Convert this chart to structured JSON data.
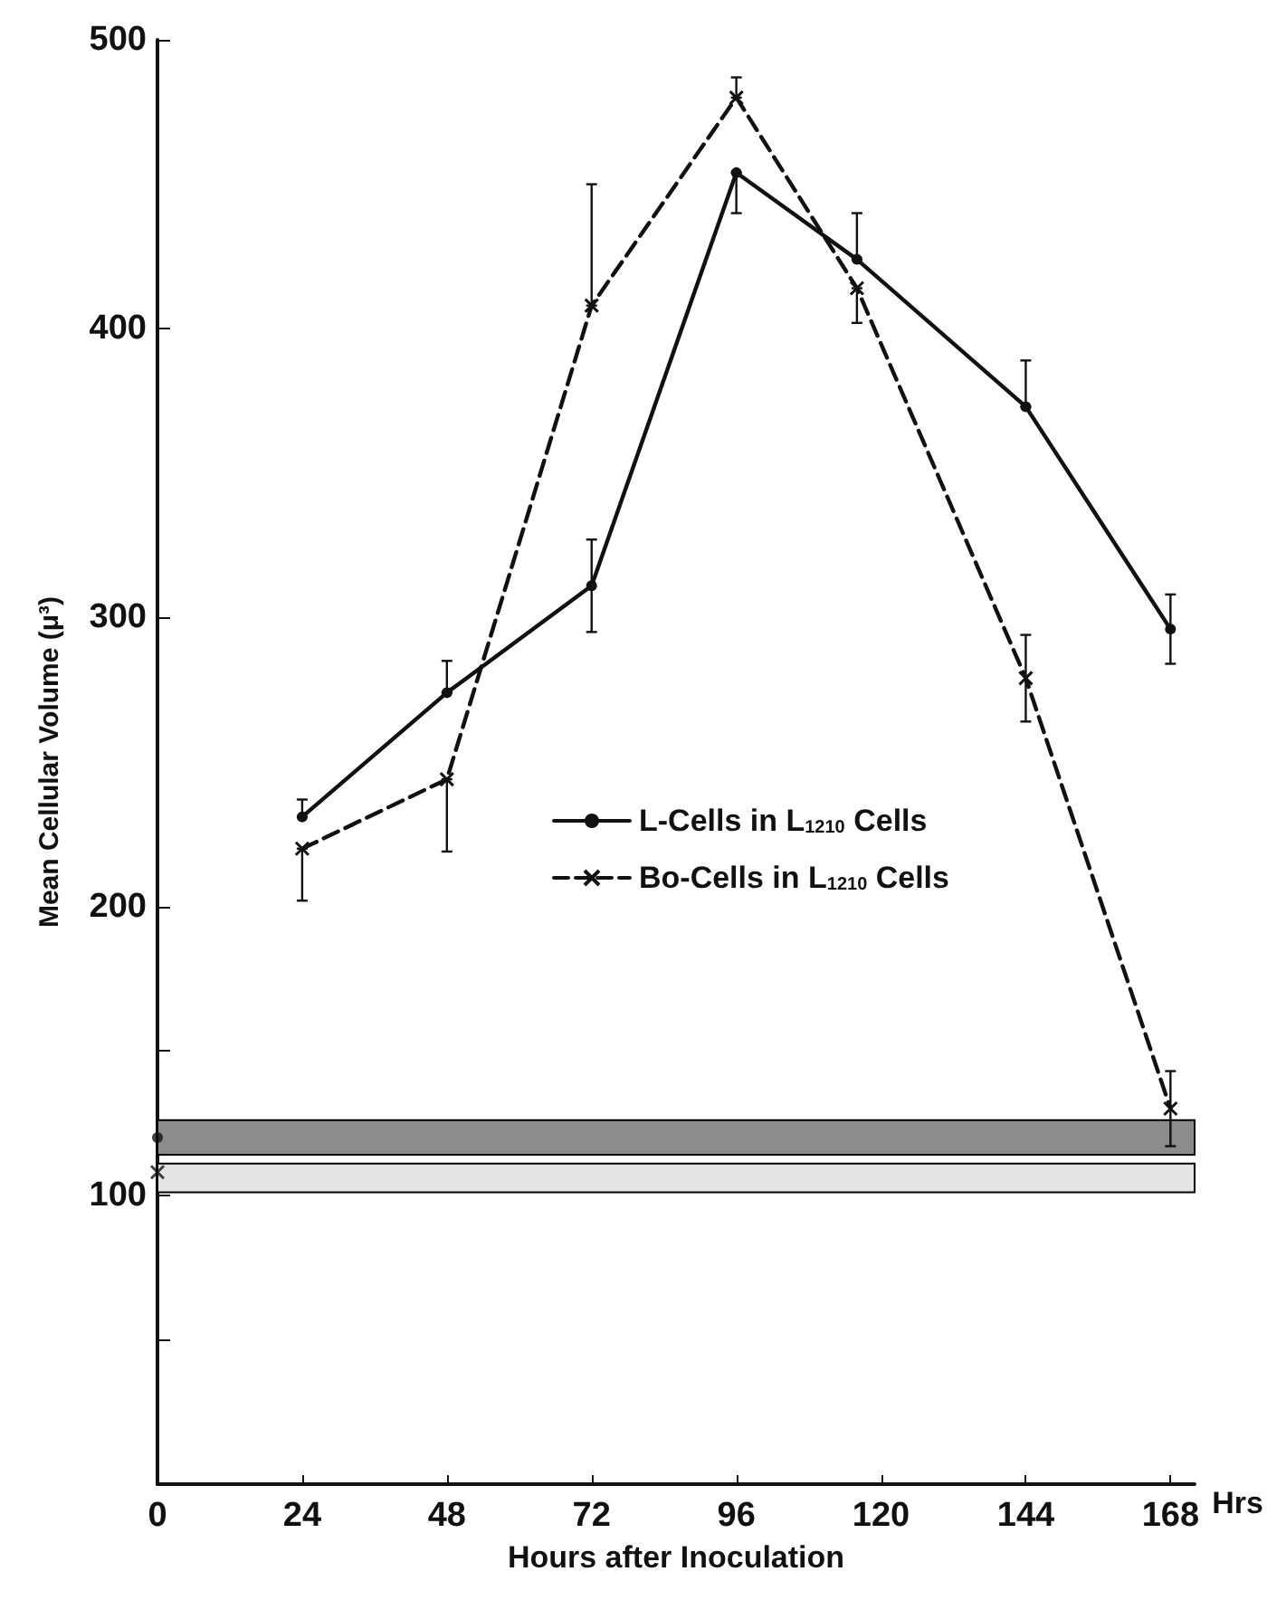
{
  "chart_data": {
    "type": "line",
    "xlabel": "Hours after Inoculation",
    "ylabel": "Mean Cellular Volume (μ³)",
    "annotations": [
      "Hrs"
    ],
    "xlim": [
      0,
      172
    ],
    "xticks": [
      0,
      24,
      48,
      72,
      96,
      120,
      144,
      168
    ],
    "ylim": [
      0,
      500
    ],
    "yticks": [
      {
        "value": 50,
        "label": null
      },
      100,
      {
        "value": 150,
        "label": null
      },
      200,
      300,
      400,
      500
    ],
    "grid": false,
    "legend": "center",
    "bands": [
      {
        "axis": "y",
        "from": 114,
        "to": 126,
        "color": "#8c8c8c"
      },
      {
        "axis": "y",
        "from": 101,
        "to": 111,
        "color": "#e4e4e4"
      }
    ],
    "series": [
      {
        "name": "L-Cells in L$_{1210}$ Cells",
        "color": "#111111",
        "marker": "circle",
        "line_style": "solid",
        "x": [
          24,
          48,
          72,
          96,
          116,
          144,
          168
        ],
        "values": [
          231,
          274,
          311,
          454,
          424,
          373,
          296
        ],
        "errors": [
          [
            231,
            237
          ],
          [
            274,
            285
          ],
          16,
          [
            440,
            454
          ],
          [
            424,
            440
          ],
          [
            373,
            389
          ],
          12
        ]
      },
      {
        "name": "Bo-Cells in L$_{1210}$ Cells",
        "color": "#111111",
        "marker": "cross",
        "line_style": "dashed",
        "x": [
          24,
          48,
          72,
          96,
          116,
          144,
          168
        ],
        "values": [
          220,
          244,
          408,
          480,
          414,
          279,
          130
        ],
        "errors": [
          [
            202,
            220
          ],
          [
            219,
            244
          ],
          [
            408,
            450
          ],
          [
            480,
            487
          ],
          [
            402,
            414
          ],
          15,
          13
        ]
      },
      {
        "type": "scatter",
        "color": "#111111",
        "marker": "circle",
        "x": [
          0
        ],
        "values": [
          120
        ]
      },
      {
        "type": "scatter",
        "color": "#111111",
        "marker": "cross",
        "x": [
          0
        ],
        "values": [
          108
        ]
      }
    ]
  }
}
